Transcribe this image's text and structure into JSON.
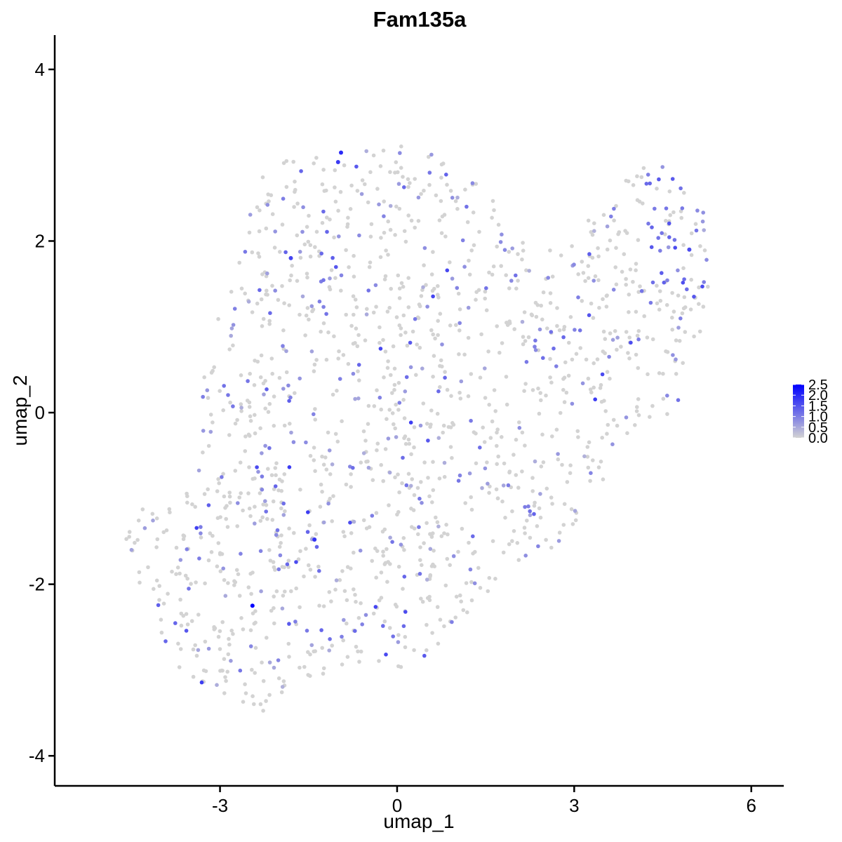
{
  "chart_data": {
    "type": "scatter",
    "title": "Fam135a",
    "xlabel": "umap_1",
    "ylabel": "umap_2",
    "xlim": [
      -5.8,
      6.55
    ],
    "ylim": [
      -4.35,
      4.4
    ],
    "xticks": [
      -3,
      0,
      3,
      6
    ],
    "yticks": [
      -4,
      -2,
      0,
      2,
      4
    ],
    "grid": false,
    "legend": {
      "position": "right",
      "type": "colorbar",
      "range": [
        0,
        2.5
      ],
      "ticks": [
        "0.0",
        "0.5",
        "1.0",
        "1.5",
        "2.0",
        "2.5"
      ],
      "low_color": "#d3d3d3",
      "high_color": "#0000ff"
    },
    "notable_points": [
      {
        "x": -2.45,
        "y": -2.25,
        "value": 2.5
      },
      {
        "x": -1.4,
        "y": -1.48,
        "value": 1.9
      },
      {
        "x": -0.95,
        "y": 3.03,
        "value": 2.0
      },
      {
        "x": -1.0,
        "y": 2.92,
        "value": 1.8
      },
      {
        "x": -1.8,
        "y": 1.8,
        "value": 1.7
      },
      {
        "x": 4.95,
        "y": 1.9,
        "value": 1.6
      }
    ],
    "background_points": {
      "total": 1500,
      "point_color_zero": "#d3d3d3",
      "outline": [
        [
          -4.7,
          -1.2
        ],
        [
          -3.4,
          -0.9
        ],
        [
          -3.3,
          0.5
        ],
        [
          -2.7,
          1.9
        ],
        [
          -2.2,
          2.9
        ],
        [
          -1.0,
          3.05
        ],
        [
          0.2,
          3.15
        ],
        [
          1.0,
          2.9
        ],
        [
          1.6,
          2.6
        ],
        [
          1.8,
          2.0
        ],
        [
          2.5,
          2.0
        ],
        [
          3.5,
          2.5
        ],
        [
          4.4,
          3.0
        ],
        [
          5.0,
          2.6
        ],
        [
          5.35,
          2.3
        ],
        [
          5.3,
          1.5
        ],
        [
          5.0,
          0.5
        ],
        [
          4.7,
          0.0
        ],
        [
          4.2,
          -0.1
        ],
        [
          3.7,
          -0.4
        ],
        [
          3.5,
          -0.8
        ],
        [
          2.8,
          -1.5
        ],
        [
          2.3,
          -1.8
        ],
        [
          1.5,
          -2.1
        ],
        [
          0.6,
          -2.9
        ],
        [
          0.0,
          -3.05
        ],
        [
          -0.8,
          -2.9
        ],
        [
          -1.4,
          -3.1
        ],
        [
          -2.2,
          -3.5
        ],
        [
          -3.0,
          -3.3
        ],
        [
          -3.7,
          -3.0
        ],
        [
          -4.2,
          -2.4
        ],
        [
          -4.65,
          -1.4
        ]
      ]
    }
  }
}
